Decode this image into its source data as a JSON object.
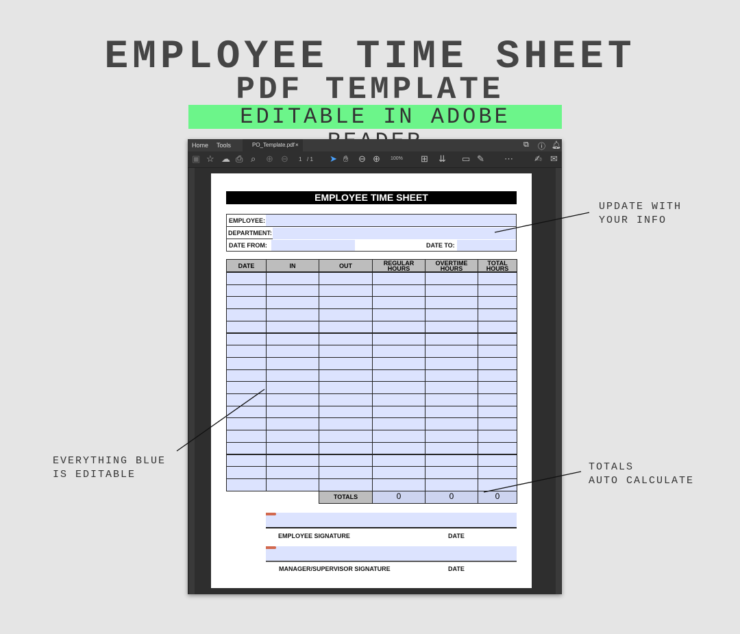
{
  "headline": {
    "line1": "EMPLOYEE TIME SHEET",
    "line2": "PDF TEMPLATE",
    "line3": "EDITABLE IN ADOBE READER"
  },
  "reader": {
    "tabs": {
      "home": "Home",
      "tools": "Tools",
      "file": "PO_Template.pdf",
      "close": "×"
    },
    "toolbar": {
      "page_current": "1",
      "page_total": "/ 1",
      "zoom": "100%"
    }
  },
  "form": {
    "title": "EMPLOYEE TIME SHEET",
    "employee_label": "EMPLOYEE:",
    "department_label": "DEPARTMENT:",
    "date_from_label": "DATE FROM:",
    "date_to_label": "DATE TO:",
    "columns": [
      "DATE",
      "IN",
      "OUT",
      "REGULAR\nHOURS",
      "OVERTIME\nHOURS",
      "TOTAL\nHOURS"
    ],
    "row_count": 18,
    "totals_label": "TOTALS",
    "totals": [
      "0",
      "0",
      "0"
    ],
    "employee_signature": "EMPLOYEE SIGNATURE",
    "manager_signature": "MANAGER/SUPERVISOR SIGNATURE",
    "date_label": "DATE",
    "editable_color": "#dce3fe"
  },
  "annotations": {
    "update": "UPDATE WITH\nYOUR INFO",
    "blue": "EVERYTHING BLUE\nIS EDITABLE",
    "totals": "TOTALS\nAUTO CALCULATE"
  }
}
